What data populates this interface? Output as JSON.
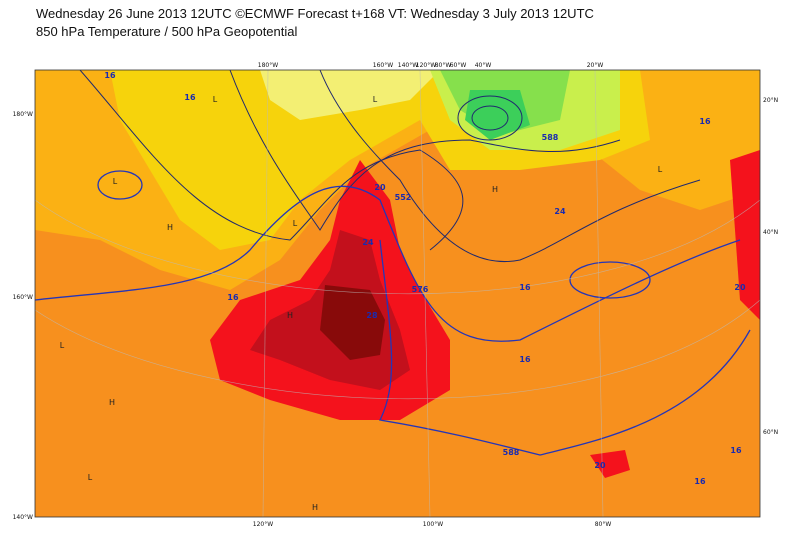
{
  "header": {
    "line1": "Wednesday 26 June 2013 12UTC ©ECMWF Forecast t+168 VT: Wednesday 3 July 2013 12UTC",
    "line2": "850 hPa Temperature / 500 hPa Geopotential"
  },
  "map": {
    "top_labels": [
      "180°W",
      "160°W",
      "140°W",
      "120°W",
      "80°W",
      "60°W",
      "40°W",
      "20°W"
    ],
    "left_labels": [
      "180°W",
      "160°W",
      "140°W"
    ],
    "right_labels": [
      "20°N",
      "40°N",
      "60°N"
    ],
    "bottom_labels": [
      "120°W",
      "100°W",
      "80°W"
    ],
    "contour_labels": [
      "16",
      "16",
      "16",
      "16",
      "16",
      "20",
      "24",
      "28",
      "20",
      "16",
      "576",
      "588",
      "588",
      "552",
      "24",
      "20",
      "16",
      "16"
    ],
    "pressure_marks": [
      "L",
      "L",
      "L",
      "L",
      "H",
      "H",
      "H",
      "L",
      "H",
      "L",
      "H",
      "L"
    ]
  }
}
